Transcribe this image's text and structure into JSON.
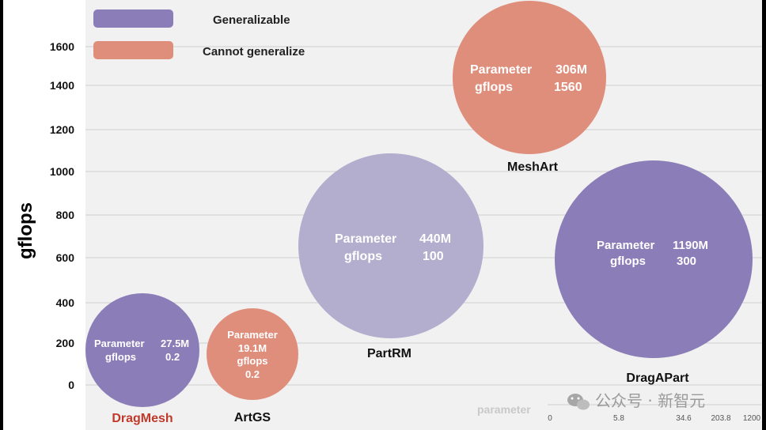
{
  "chart_data": {
    "type": "scatter",
    "ylabel": "gflops",
    "xlabel": "parameter",
    "y_ticks": [
      "0",
      "200",
      "400",
      "600",
      "800",
      "1000",
      "1200",
      "1400",
      "1600"
    ],
    "x_ticks": [
      "0",
      "5.8",
      "34.6",
      "203.8",
      "1200"
    ],
    "legend": [
      {
        "label": "Generalizable",
        "color": "#8b7db8"
      },
      {
        "label": "Cannot generalize",
        "color": "#e08e7c"
      }
    ],
    "points": [
      {
        "name": "DragMesh",
        "name_color": "#c0392b",
        "category": "Generalizable",
        "parameter": "27.5M",
        "gflops": "0.2",
        "label_lines": [
          [
            "Parameter",
            "27.5M"
          ],
          [
            "gflops",
            "0.2"
          ]
        ]
      },
      {
        "name": "ArtGS",
        "name_color": "#111111",
        "category": "Cannot generalize",
        "parameter": "19.1M",
        "gflops": "0.2",
        "label_lines": [
          [
            "Parameter"
          ],
          [
            "19.1M"
          ],
          [
            "gflops"
          ],
          [
            "0.2"
          ]
        ]
      },
      {
        "name": "PartRM",
        "name_color": "#111111",
        "category": "Generalizable",
        "parameter": "440M",
        "gflops": "100",
        "label_lines": [
          [
            "Parameter",
            "440M"
          ],
          [
            "gflops",
            "100"
          ]
        ]
      },
      {
        "name": "MeshArt",
        "name_color": "#111111",
        "category": "Cannot generalize",
        "parameter": "306M",
        "gflops": "1560",
        "label_lines": [
          [
            "Parameter",
            "306M"
          ],
          [
            "gflops",
            "1560"
          ]
        ]
      },
      {
        "name": "DragAPart",
        "name_color": "#111111",
        "category": "Generalizable",
        "parameter": "1190M",
        "gflops": "300",
        "label_lines": [
          [
            "Parameter",
            "1190M"
          ],
          [
            "gflops",
            "300"
          ]
        ]
      }
    ]
  },
  "colors": {
    "generalizable_light": "#b3aecd",
    "generalizable": "#8b7db8",
    "cannot": "#e08e7c"
  },
  "watermark": {
    "text": "公众号 · 新智元",
    "icon": "wechat-icon"
  }
}
